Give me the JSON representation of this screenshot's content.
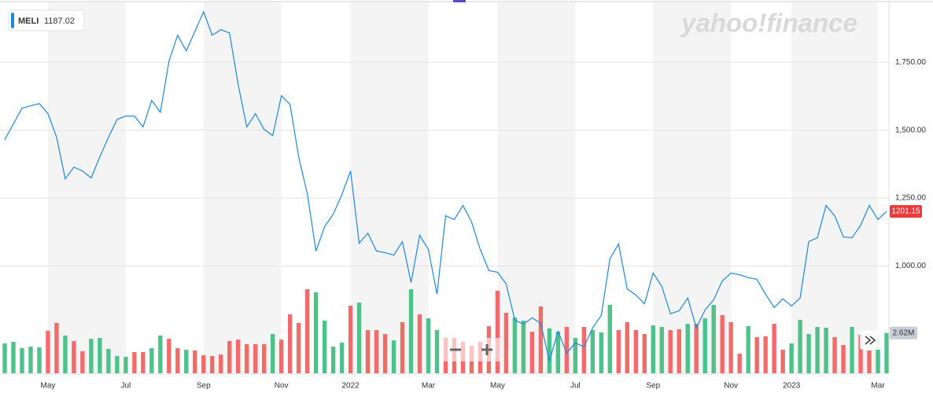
{
  "watermark": "yahoo!finance",
  "chart_data": {
    "type": "line",
    "categories": [
      null,
      null,
      null,
      null,
      null,
      "May",
      null,
      null,
      null,
      null,
      null,
      null,
      null,
      null,
      "Jul",
      null,
      null,
      null,
      null,
      null,
      null,
      null,
      null,
      "Sep",
      null,
      null,
      null,
      null,
      null,
      null,
      null,
      null,
      "Nov",
      null,
      null,
      null,
      null,
      null,
      null,
      null,
      "2022",
      null,
      null,
      null,
      null,
      null,
      null,
      null,
      null,
      "Mar",
      null,
      null,
      null,
      null,
      null,
      null,
      null,
      "May",
      null,
      null,
      null,
      null,
      null,
      null,
      null,
      null,
      "Jul",
      null,
      null,
      null,
      null,
      null,
      null,
      null,
      null,
      "Sep",
      null,
      null,
      null,
      null,
      null,
      null,
      null,
      null,
      "Nov",
      null,
      null,
      null,
      null,
      null,
      null,
      "2023",
      null,
      null,
      null,
      null,
      null,
      null,
      null,
      null,
      null,
      "Mar",
      null
    ],
    "series": [
      {
        "name": "MELI",
        "color": "#1e88e5",
        "values": [
          1465,
          1523,
          1581,
          1590,
          1598,
          1561,
          1474,
          1321,
          1364,
          1350,
          1324,
          1402,
          1474,
          1540,
          1552,
          1552,
          1512,
          1610,
          1566,
          1754,
          1850,
          1792,
          1864,
          1936,
          1850,
          1870,
          1858,
          1668,
          1512,
          1561,
          1503,
          1480,
          1627,
          1595,
          1402,
          1266,
          1055,
          1145,
          1191,
          1263,
          1350,
          1084,
          1121,
          1055,
          1049,
          1040,
          1090,
          939,
          1113,
          1061,
          896,
          1185,
          1171,
          1223,
          1162,
          1061,
          983,
          977,
          934,
          801,
          786,
          809,
          789,
          650,
          760,
          679,
          717,
          702,
          772,
          818,
          1026,
          1081,
          916,
          893,
          861,
          974,
          925,
          824,
          835,
          882,
          772,
          838,
          876,
          945,
          974,
          968,
          957,
          951,
          896,
          847,
          879,
          853,
          882,
          1090,
          1104,
          1223,
          1185,
          1107,
          1104,
          1150,
          1223,
          1171,
          1201.15
        ]
      },
      {
        "type": "bar",
        "axis": "y2",
        "values": [
          1.94,
          2.04,
          1.63,
          1.73,
          1.68,
          2.76,
          3.27,
          2.45,
          2.09,
          1.43,
          2.24,
          2.3,
          1.58,
          1.12,
          1.07,
          1.38,
          1.38,
          1.63,
          2.45,
          2.24,
          1.63,
          1.53,
          1.48,
          1.17,
          1.12,
          1.22,
          2.09,
          2.19,
          1.89,
          1.89,
          1.89,
          2.55,
          2.19,
          3.83,
          3.27,
          5.46,
          5.26,
          3.42,
          1.73,
          1.99,
          4.39,
          4.59,
          2.81,
          2.81,
          2.55,
          2.14,
          3.32,
          5.46,
          3.83,
          3.57,
          2.81,
          2.3,
          2.3,
          2.04,
          1.79,
          2.04,
          3.06,
          5.36,
          3.93,
          3.62,
          3.42,
          2.7,
          4.34,
          2.91,
          2.7,
          3.01,
          2.3,
          3.01,
          2.81,
          2.65,
          4.44,
          2.81,
          3.32,
          2.81,
          2.55,
          3.11,
          3.01,
          2.81,
          2.86,
          3.21,
          3.21,
          3.57,
          4.44,
          3.78,
          3.32,
          1.28,
          3.06,
          2.35,
          2.4,
          3.21,
          1.53,
          1.94,
          3.47,
          2.55,
          3.01,
          2.96,
          2.35,
          1.84,
          3.01,
          2.5,
          1.48,
          2.5,
          2.62
        ],
        "colors": [
          "#4fc18a",
          "#4fc18a",
          "#4fc18a",
          "#4fc18a",
          "#4fc18a",
          "#f26b6b",
          "#f26b6b",
          "#4fc18a",
          "#f26b6b",
          "#f26b6b",
          "#4fc18a",
          "#4fc18a",
          "#4fc18a",
          "#4fc18a",
          "#4fc18a",
          "#f26b6b",
          "#f26b6b",
          "#4fc18a",
          "#4fc18a",
          "#f26b6b",
          "#f26b6b",
          "#4fc18a",
          "#f26b6b",
          "#f26b6b",
          "#f26b6b",
          "#f26b6b",
          "#f26b6b",
          "#f26b6b",
          "#f26b6b",
          "#f26b6b",
          "#f26b6b",
          "#4fc18a",
          "#f26b6b",
          "#f26b6b",
          "#f26b6b",
          "#f26b6b",
          "#4fc18a",
          "#4fc18a",
          "#4fc18a",
          "#4fc18a",
          "#f26b6b",
          "#4fc18a",
          "#f26b6b",
          "#f26b6b",
          "#f26b6b",
          "#4fc18a",
          "#f26b6b",
          "#4fc18a",
          "#f26b6b",
          "#4fc18a",
          "#4fc18a",
          "#f26b6b",
          "#f26b6b",
          "#f26b6b",
          "#f26b6b",
          "#f26b6b",
          "#f26b6b",
          "#f26b6b",
          "#f26b6b",
          "#4fc18a",
          "#4fc18a",
          "#f26b6b",
          "#f26b6b",
          "#4fc18a",
          "#4fc18a",
          "#f26b6b",
          "#4fc18a",
          "#f26b6b",
          "#4fc18a",
          "#4fc18a",
          "#4fc18a",
          "#f26b6b",
          "#f26b6b",
          "#f26b6b",
          "#f26b6b",
          "#4fc18a",
          "#4fc18a",
          "#f26b6b",
          "#f26b6b",
          "#4fc18a",
          "#f26b6b",
          "#4fc18a",
          "#4fc18a",
          "#f26b6b",
          "#f26b6b",
          "#f26b6b",
          "#4fc18a",
          "#f26b6b",
          "#f26b6b",
          "#f26b6b",
          "#f26b6b",
          "#4fc18a",
          "#4fc18a",
          "#4fc18a",
          "#4fc18a",
          "#4fc18a",
          "#f26b6b",
          "#f26b6b",
          "#4fc18a",
          "#f26b6b",
          "#f26b6b",
          "#4fc18a",
          "#4fc18a"
        ]
      }
    ],
    "quote": 1187.02,
    "ylim": [
      605,
      1965
    ],
    "yticks": [
      {
        "value": 1000,
        "label": "1,000.00"
      },
      {
        "value": 1250,
        "label": "1,250.00"
      },
      {
        "value": 1500,
        "label": "1,500.00"
      },
      {
        "value": 1750,
        "label": "1,750.00"
      }
    ],
    "y2lim": [
      0,
      24
    ],
    "y2ticks": [
      {
        "value": 2.62,
        "label": "2.62M"
      }
    ],
    "grid": true
  }
}
